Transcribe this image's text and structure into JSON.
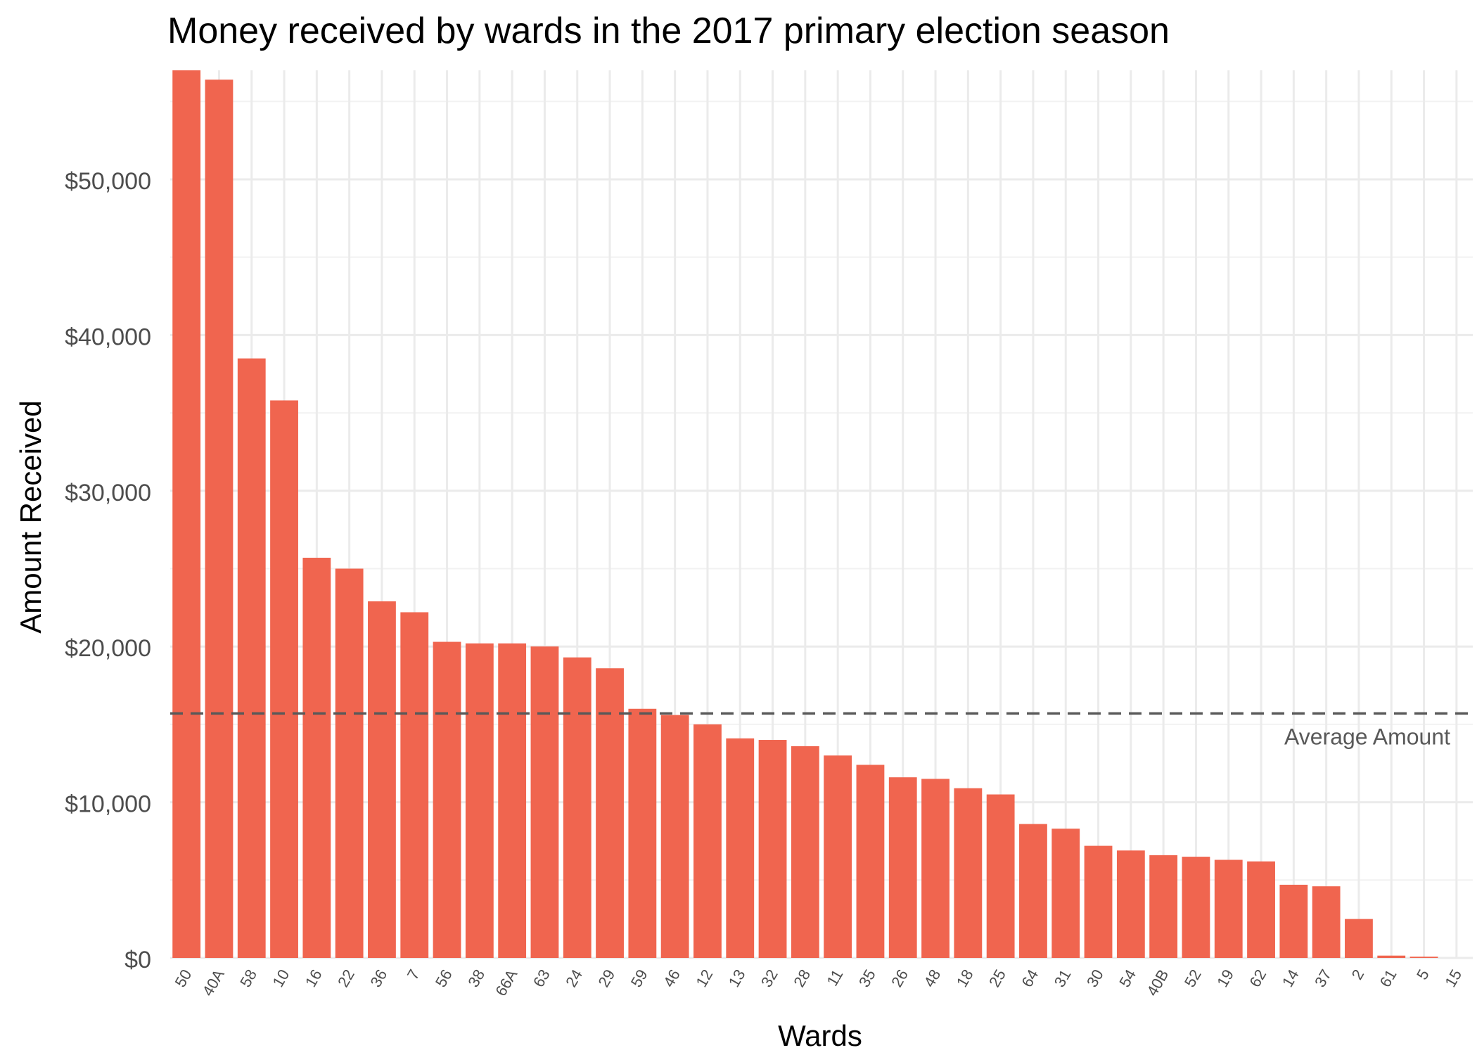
{
  "chart_data": {
    "type": "bar",
    "title": "Money received by wards in the 2017 primary election season",
    "xlabel": "Wards",
    "ylabel": "Amount Received",
    "categories": [
      "50",
      "40A",
      "58",
      "10",
      "16",
      "22",
      "36",
      "7",
      "56",
      "38",
      "66A",
      "63",
      "24",
      "29",
      "59",
      "46",
      "12",
      "13",
      "32",
      "28",
      "11",
      "35",
      "26",
      "48",
      "18",
      "25",
      "64",
      "31",
      "30",
      "54",
      "40B",
      "52",
      "19",
      "62",
      "14",
      "37",
      "2",
      "61",
      "5",
      "15"
    ],
    "values": [
      57000,
      56400,
      38500,
      35800,
      25700,
      25000,
      22900,
      22200,
      20300,
      20200,
      20200,
      20000,
      19300,
      18600,
      16000,
      15600,
      15000,
      14100,
      14000,
      13600,
      13000,
      12400,
      11600,
      11500,
      10900,
      10500,
      8600,
      8300,
      7200,
      6900,
      6600,
      6500,
      6300,
      6200,
      4700,
      4600,
      2500,
      150,
      80,
      0
    ],
    "ylim": [
      0,
      57000
    ],
    "yticks": [
      0,
      10000,
      20000,
      30000,
      40000,
      50000
    ],
    "ytick_labels": [
      "$0",
      "$10,000",
      "$20,000",
      "$30,000",
      "$40,000",
      "$50,000"
    ],
    "bar_color": "#F0654F",
    "grid": true,
    "reference_line": {
      "value": 15700,
      "label": "Average Amount",
      "color": "#595959",
      "style": "dashed"
    }
  }
}
